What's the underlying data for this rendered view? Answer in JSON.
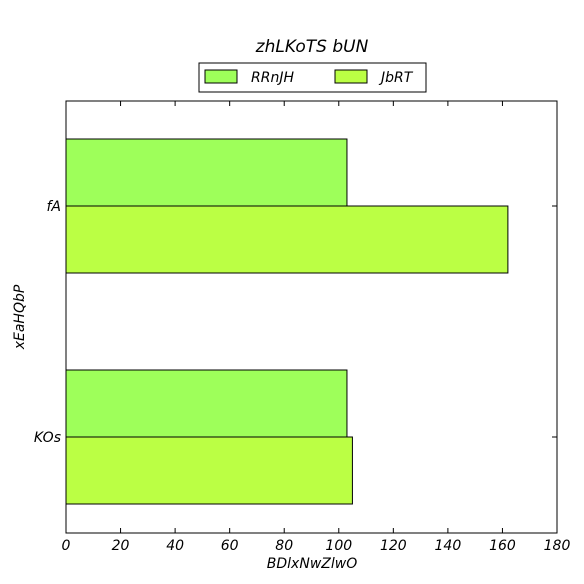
{
  "chart_data": {
    "type": "bar",
    "orientation": "horizontal",
    "title": "zhLKoTS bUN",
    "xlabel": "BDlxNwZlwO",
    "ylabel": "xEaHQbP",
    "categories": [
      "fA",
      "KOs"
    ],
    "series": [
      {
        "name": "RRnJH",
        "values": [
          103,
          103
        ],
        "color": "#9eff5a"
      },
      {
        "name": "JbRT",
        "values": [
          162,
          105
        ],
        "color": "#bbff44"
      }
    ],
    "xlim": [
      0,
      180
    ],
    "xticks": [
      0,
      20,
      40,
      60,
      80,
      100,
      120,
      140,
      160,
      180
    ],
    "grid": false,
    "legend_position": "top-center"
  }
}
